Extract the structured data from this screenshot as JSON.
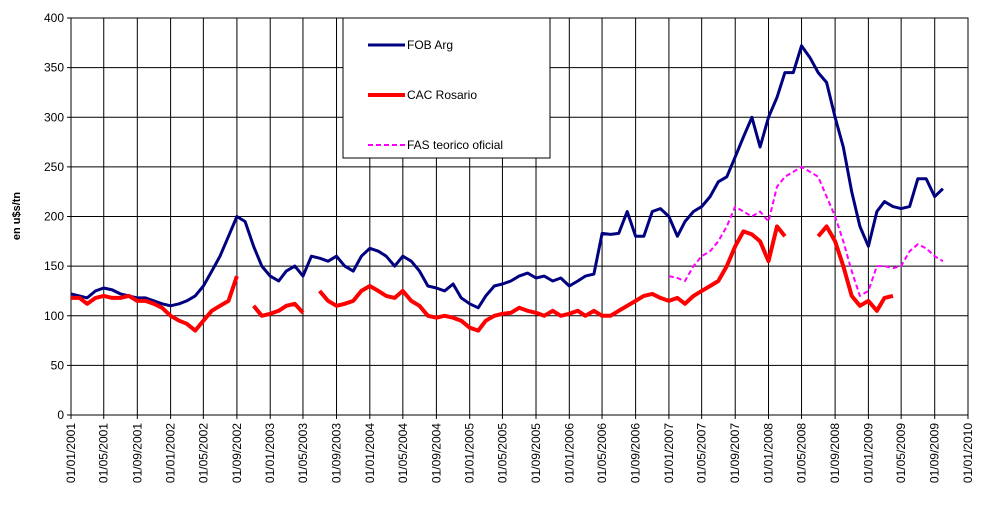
{
  "chart_data": {
    "type": "line",
    "ylabel": "en u$s/tn",
    "xlim": [
      "01/01/2001",
      "01/01/2010"
    ],
    "xticks": [
      "01/01/2001",
      "01/05/2001",
      "01/09/2001",
      "01/01/2002",
      "01/05/2002",
      "01/09/2002",
      "01/01/2003",
      "01/05/2003",
      "01/09/2003",
      "01/01/2004",
      "01/05/2004",
      "01/09/2004",
      "01/01/2005",
      "01/05/2005",
      "01/09/2005",
      "01/01/2006",
      "01/05/2006",
      "01/09/2006",
      "01/01/2007",
      "01/05/2007",
      "01/09/2007",
      "01/01/2008",
      "01/05/2008",
      "01/09/2008",
      "01/01/2009",
      "01/05/2009",
      "01/09/2009",
      "01/01/2010"
    ],
    "ylim": [
      0,
      400
    ],
    "yticks": [
      0,
      50,
      100,
      150,
      200,
      250,
      300,
      350,
      400
    ],
    "grid": true,
    "legend": "top-center",
    "x": [
      "01/01/2001",
      "01/02/2001",
      "01/03/2001",
      "01/04/2001",
      "01/05/2001",
      "01/06/2001",
      "01/07/2001",
      "01/08/2001",
      "01/09/2001",
      "01/10/2001",
      "01/11/2001",
      "01/12/2001",
      "01/01/2002",
      "01/02/2002",
      "01/03/2002",
      "01/04/2002",
      "01/05/2002",
      "01/06/2002",
      "01/07/2002",
      "01/08/2002",
      "01/09/2002",
      "01/10/2002",
      "01/11/2002",
      "01/12/2002",
      "01/01/2003",
      "01/02/2003",
      "01/03/2003",
      "01/04/2003",
      "01/05/2003",
      "01/06/2003",
      "01/07/2003",
      "01/08/2003",
      "01/09/2003",
      "01/10/2003",
      "01/11/2003",
      "01/12/2003",
      "01/01/2004",
      "01/02/2004",
      "01/03/2004",
      "01/04/2004",
      "01/05/2004",
      "01/06/2004",
      "01/07/2004",
      "01/08/2004",
      "01/09/2004",
      "01/10/2004",
      "01/11/2004",
      "01/12/2004",
      "01/01/2005",
      "01/02/2005",
      "01/03/2005",
      "01/04/2005",
      "01/05/2005",
      "01/06/2005",
      "01/07/2005",
      "01/08/2005",
      "01/09/2005",
      "01/10/2005",
      "01/11/2005",
      "01/12/2005",
      "01/01/2006",
      "01/02/2006",
      "01/03/2006",
      "01/04/2006",
      "01/05/2006",
      "01/06/2006",
      "01/07/2006",
      "01/08/2006",
      "01/09/2006",
      "01/10/2006",
      "01/11/2006",
      "01/12/2006",
      "01/01/2007",
      "01/02/2007",
      "01/03/2007",
      "01/04/2007",
      "01/05/2007",
      "01/06/2007",
      "01/07/2007",
      "01/08/2007",
      "01/09/2007",
      "01/10/2007",
      "01/11/2007",
      "01/12/2007",
      "01/01/2008",
      "01/02/2008",
      "01/03/2008",
      "01/04/2008",
      "01/05/2008",
      "01/06/2008",
      "01/07/2008",
      "01/08/2008",
      "01/09/2008",
      "01/10/2008",
      "01/11/2008",
      "01/12/2008",
      "01/01/2009",
      "01/02/2009",
      "01/03/2009",
      "01/04/2009",
      "01/05/2009",
      "01/06/2009",
      "01/07/2009",
      "01/08/2009",
      "01/09/2009",
      "01/10/2009"
    ],
    "series": [
      {
        "name": "FOB Arg",
        "color": "#000080",
        "width": 3,
        "dashed": false,
        "values": [
          122,
          120,
          118,
          125,
          128,
          126,
          122,
          120,
          118,
          118,
          115,
          112,
          110,
          112,
          115,
          120,
          130,
          145,
          160,
          180,
          200,
          195,
          170,
          150,
          140,
          135,
          145,
          150,
          140,
          160,
          158,
          155,
          160,
          150,
          145,
          160,
          168,
          165,
          160,
          150,
          160,
          155,
          145,
          130,
          128,
          125,
          132,
          118,
          112,
          108,
          120,
          130,
          132,
          135,
          140,
          143,
          138,
          140,
          135,
          138,
          130,
          135,
          140,
          142,
          183,
          182,
          183,
          205,
          180,
          180,
          205,
          208,
          200,
          180,
          195,
          205,
          210,
          220,
          235,
          240,
          260,
          280,
          300,
          270,
          300,
          320,
          345,
          345,
          372,
          360,
          345,
          335,
          300,
          270,
          225,
          190,
          170,
          205,
          215,
          210,
          208,
          210,
          238,
          238,
          220,
          228
        ]
      },
      {
        "name": "CAC Rosario",
        "color": "#ff0000",
        "width": 4,
        "dashed": false,
        "values": [
          118,
          118,
          112,
          118,
          120,
          118,
          118,
          120,
          115,
          115,
          112,
          108,
          100,
          95,
          92,
          85,
          95,
          105,
          110,
          115,
          140,
          null,
          110,
          100,
          102,
          105,
          110,
          112,
          103,
          null,
          125,
          115,
          110,
          112,
          115,
          125,
          130,
          125,
          120,
          118,
          125,
          115,
          110,
          100,
          98,
          100,
          98,
          95,
          88,
          85,
          95,
          100,
          102,
          103,
          108,
          105,
          103,
          100,
          105,
          100,
          102,
          105,
          100,
          105,
          100,
          100,
          105,
          110,
          115,
          120,
          122,
          118,
          115,
          118,
          112,
          120,
          125,
          130,
          135,
          150,
          170,
          185,
          182,
          175,
          155,
          190,
          180,
          null,
          200,
          null,
          180,
          190,
          175,
          150,
          120,
          110,
          115,
          105,
          118,
          120,
          null,
          null,
          null,
          null,
          null,
          null
        ]
      },
      {
        "name": "FAS teorico oficial",
        "color": "#ff00ff",
        "width": 2,
        "dashed": true,
        "values": [
          null,
          null,
          null,
          null,
          null,
          null,
          null,
          null,
          null,
          null,
          null,
          null,
          null,
          null,
          null,
          null,
          null,
          null,
          null,
          null,
          null,
          null,
          null,
          null,
          null,
          null,
          null,
          null,
          null,
          null,
          null,
          null,
          null,
          null,
          null,
          null,
          null,
          null,
          null,
          null,
          null,
          null,
          null,
          null,
          null,
          null,
          null,
          null,
          null,
          null,
          null,
          null,
          null,
          null,
          null,
          null,
          null,
          null,
          null,
          null,
          null,
          null,
          null,
          null,
          null,
          null,
          null,
          null,
          null,
          null,
          null,
          null,
          140,
          138,
          135,
          150,
          160,
          165,
          175,
          190,
          210,
          205,
          200,
          205,
          195,
          230,
          240,
          245,
          250,
          245,
          240,
          220,
          200,
          175,
          145,
          120,
          125,
          150,
          150,
          148,
          150,
          165,
          172,
          168,
          160,
          155
        ]
      }
    ]
  }
}
